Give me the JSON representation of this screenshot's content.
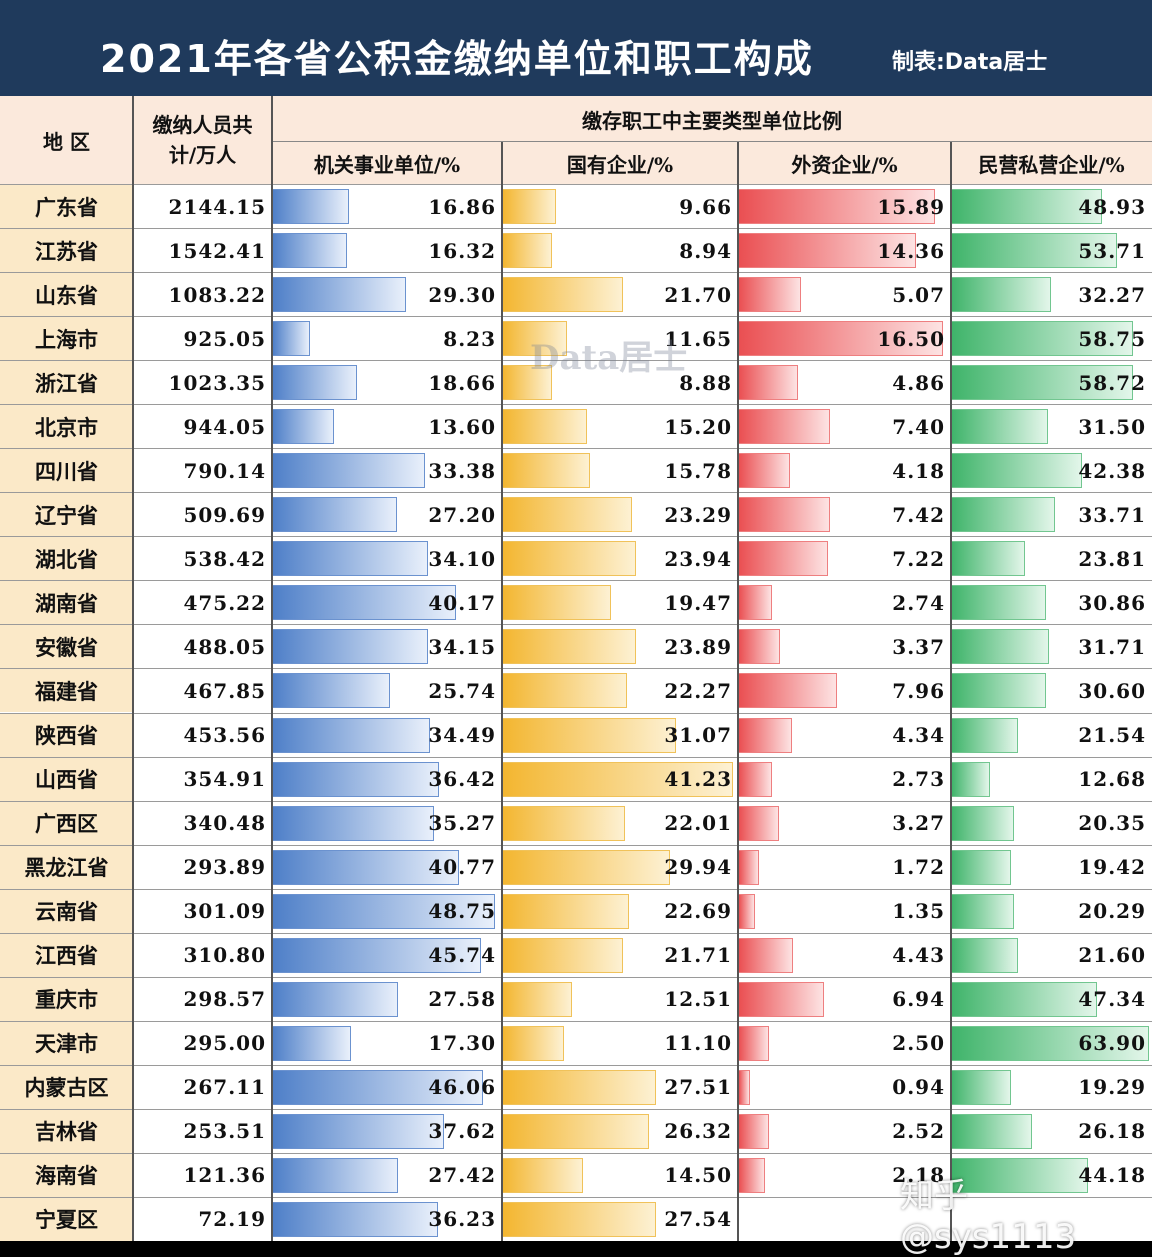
{
  "title": "2021年各省公积金缴纳单位和职工构成",
  "maker": "制表:Data居士",
  "header": {
    "region": "地 区",
    "total": "缴纳人员共计/万人",
    "group": "缴存职工中主要类型单位比例",
    "col_gov": "机关事业单位/%",
    "col_soe": "国有企业/%",
    "col_foreign": "外资企业/%",
    "col_private": "民营私营企业/%"
  },
  "watermark": "Data居士",
  "footer_watermark": "知乎 @sys1113",
  "colors": {
    "title_bg": "#1f3a5c",
    "gov": "#4e7fc8",
    "soe": "#f3b630",
    "foreign": "#ea4f52",
    "private": "#3fb46a",
    "region_bg": "#fbe9c8"
  },
  "chart_data": {
    "type": "table",
    "title": "2021年各省公积金缴纳单位和职工构成",
    "columns": [
      "地 区",
      "缴纳人员共计/万人",
      "机关事业单位/%",
      "国有企业/%",
      "外资企业/%",
      "民营私营企业/%"
    ],
    "rows": [
      [
        "广东省",
        "2144.15",
        "16.86",
        "9.66",
        "15.89",
        "48.93"
      ],
      [
        "江苏省",
        "1542.41",
        "16.32",
        "8.94",
        "14.36",
        "53.71"
      ],
      [
        "山东省",
        "1083.22",
        "29.30",
        "21.70",
        "5.07",
        "32.27"
      ],
      [
        "上海市",
        "925.05",
        "8.23",
        "11.65",
        "16.50",
        "58.75"
      ],
      [
        "浙江省",
        "1023.35",
        "18.66",
        "8.88",
        "4.86",
        "58.72"
      ],
      [
        "北京市",
        "944.05",
        "13.60",
        "15.20",
        "7.40",
        "31.50"
      ],
      [
        "四川省",
        "790.14",
        "33.38",
        "15.78",
        "4.18",
        "42.38"
      ],
      [
        "辽宁省",
        "509.69",
        "27.20",
        "23.29",
        "7.42",
        "33.71"
      ],
      [
        "湖北省",
        "538.42",
        "34.10",
        "23.94",
        "7.22",
        "23.81"
      ],
      [
        "湖南省",
        "475.22",
        "40.17",
        "19.47",
        "2.74",
        "30.86"
      ],
      [
        "安徽省",
        "488.05",
        "34.15",
        "23.89",
        "3.37",
        "31.71"
      ],
      [
        "福建省",
        "467.85",
        "25.74",
        "22.27",
        "7.96",
        "30.60"
      ],
      [
        "陕西省",
        "453.56",
        "34.49",
        "31.07",
        "4.34",
        "21.54"
      ],
      [
        "山西省",
        "354.91",
        "36.42",
        "41.23",
        "2.73",
        "12.68"
      ],
      [
        "广西区",
        "340.48",
        "35.27",
        "22.01",
        "3.27",
        "20.35"
      ],
      [
        "黑龙江省",
        "293.89",
        "40.77",
        "29.94",
        "1.72",
        "19.42"
      ],
      [
        "云南省",
        "301.09",
        "48.75",
        "22.69",
        "1.35",
        "20.29"
      ],
      [
        "江西省",
        "310.80",
        "45.74",
        "21.71",
        "4.43",
        "21.60"
      ],
      [
        "重庆市",
        "298.57",
        "27.58",
        "12.51",
        "6.94",
        "47.34"
      ],
      [
        "天津市",
        "295.00",
        "17.30",
        "11.10",
        "2.50",
        "63.90"
      ],
      [
        "内蒙古区",
        "267.11",
        "46.06",
        "27.51",
        "0.94",
        "19.29"
      ],
      [
        "吉林省",
        "253.51",
        "37.62",
        "26.32",
        "2.52",
        "26.18"
      ],
      [
        "海南省",
        "121.36",
        "27.42",
        "14.50",
        "2.18",
        "44.18"
      ],
      [
        "宁夏区",
        "72.19",
        "36.23",
        "27.54",
        "",
        ""
      ]
    ]
  }
}
